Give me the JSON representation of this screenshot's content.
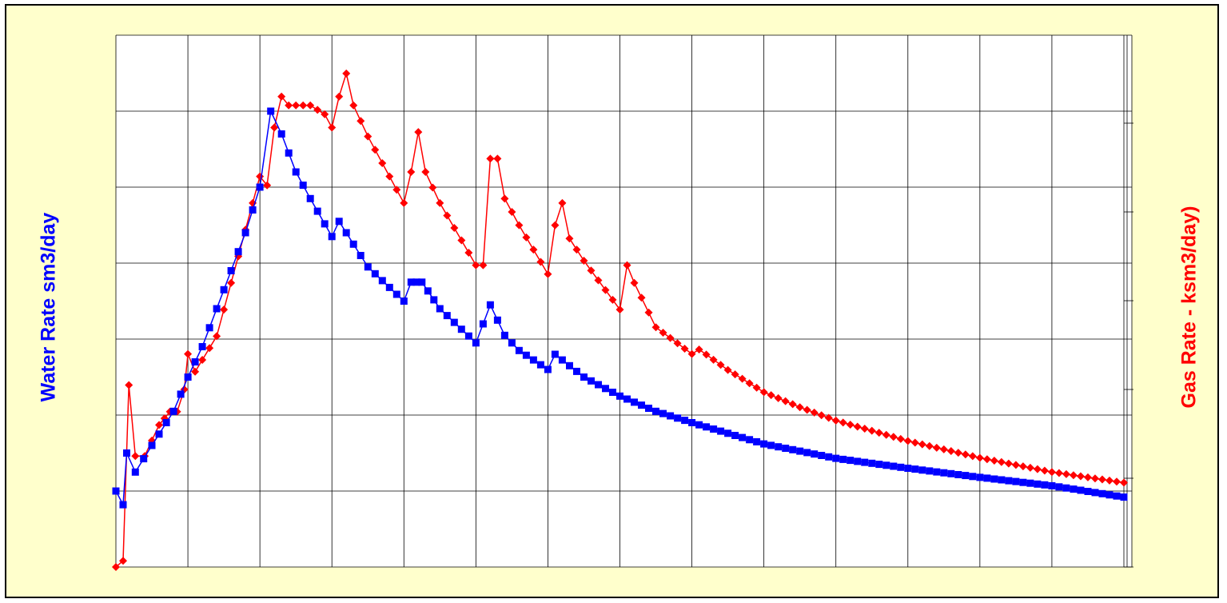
{
  "chart_data": {
    "type": "line",
    "title": "",
    "xlabel": "",
    "ylabel_left": "Water Rate sm3/day",
    "ylabel_right": "Gas Rate - ksm3/day)",
    "x_ticks_labeled": false,
    "y_ticks_labeled": false,
    "grid": true,
    "legend": "none",
    "xlim": [
      0,
      14
    ],
    "ylim_left": [
      0,
      6
    ],
    "ylim_right": [
      0,
      5
    ],
    "colors": {
      "water": "#0000ff",
      "gas": "#ff0000",
      "background": "#ffffcc",
      "plot_background": "#ffffff"
    },
    "series": [
      {
        "key": "water",
        "axis": "left",
        "marker": "square",
        "keypoints": [
          [
            0.0,
            1.0
          ],
          [
            0.1,
            0.82
          ],
          [
            0.15,
            1.5
          ],
          [
            0.27,
            1.25
          ],
          [
            0.5,
            1.6
          ],
          [
            0.8,
            2.05
          ],
          [
            1.0,
            2.5
          ],
          [
            1.2,
            2.9
          ],
          [
            1.4,
            3.4
          ],
          [
            1.6,
            3.9
          ],
          [
            1.8,
            4.4
          ],
          [
            2.0,
            5.0
          ],
          [
            2.15,
            6.0
          ],
          [
            2.3,
            5.7
          ],
          [
            2.5,
            5.2
          ],
          [
            2.7,
            4.85
          ],
          [
            3.0,
            4.35
          ],
          [
            3.1,
            4.55
          ],
          [
            3.3,
            4.25
          ],
          [
            3.5,
            3.95
          ],
          [
            4.0,
            3.5
          ],
          [
            4.1,
            3.75
          ],
          [
            4.25,
            3.75
          ],
          [
            4.5,
            3.4
          ],
          [
            5.0,
            2.95
          ],
          [
            5.1,
            3.2
          ],
          [
            5.2,
            3.45
          ],
          [
            5.4,
            3.05
          ],
          [
            5.6,
            2.85
          ],
          [
            6.0,
            2.6
          ],
          [
            6.1,
            2.8
          ],
          [
            6.3,
            2.65
          ],
          [
            6.5,
            2.5
          ],
          [
            7.0,
            2.25
          ],
          [
            7.5,
            2.05
          ],
          [
            8.0,
            1.9
          ],
          [
            9.0,
            1.62
          ],
          [
            10.0,
            1.43
          ],
          [
            11.0,
            1.3
          ],
          [
            12.0,
            1.18
          ],
          [
            13.0,
            1.07
          ],
          [
            14.0,
            0.92
          ]
        ]
      },
      {
        "key": "gas",
        "axis": "right",
        "marker": "diamond",
        "keypoints": [
          [
            0.0,
            0.0
          ],
          [
            0.1,
            0.07
          ],
          [
            0.18,
            2.05
          ],
          [
            0.27,
            1.25
          ],
          [
            0.4,
            1.25
          ],
          [
            0.6,
            1.6
          ],
          [
            0.75,
            1.75
          ],
          [
            0.85,
            1.75
          ],
          [
            0.95,
            2.0
          ],
          [
            1.0,
            2.4
          ],
          [
            1.1,
            2.2
          ],
          [
            1.4,
            2.6
          ],
          [
            1.7,
            3.5
          ],
          [
            2.0,
            4.4
          ],
          [
            2.1,
            4.3
          ],
          [
            2.2,
            4.95
          ],
          [
            2.3,
            5.3
          ],
          [
            2.4,
            5.2
          ],
          [
            2.7,
            5.2
          ],
          [
            2.9,
            5.1
          ],
          [
            3.0,
            4.95
          ],
          [
            3.1,
            5.3
          ],
          [
            3.2,
            5.56
          ],
          [
            3.3,
            5.2
          ],
          [
            3.5,
            4.85
          ],
          [
            4.0,
            4.1
          ],
          [
            4.1,
            4.45
          ],
          [
            4.2,
            4.9
          ],
          [
            4.3,
            4.45
          ],
          [
            4.5,
            4.1
          ],
          [
            5.0,
            3.4
          ],
          [
            5.1,
            3.4
          ],
          [
            5.2,
            4.6
          ],
          [
            5.3,
            4.6
          ],
          [
            5.4,
            4.15
          ],
          [
            5.6,
            3.85
          ],
          [
            6.0,
            3.3
          ],
          [
            6.1,
            3.85
          ],
          [
            6.2,
            4.1
          ],
          [
            6.3,
            3.7
          ],
          [
            6.5,
            3.45
          ],
          [
            7.0,
            2.9
          ],
          [
            7.1,
            3.4
          ],
          [
            7.2,
            3.2
          ],
          [
            7.5,
            2.7
          ],
          [
            8.0,
            2.4
          ],
          [
            8.1,
            2.45
          ],
          [
            8.5,
            2.22
          ],
          [
            9.0,
            1.97
          ],
          [
            9.5,
            1.8
          ],
          [
            10.0,
            1.65
          ],
          [
            11.0,
            1.42
          ],
          [
            12.0,
            1.23
          ],
          [
            13.0,
            1.07
          ],
          [
            14.0,
            0.95
          ]
        ]
      }
    ]
  }
}
